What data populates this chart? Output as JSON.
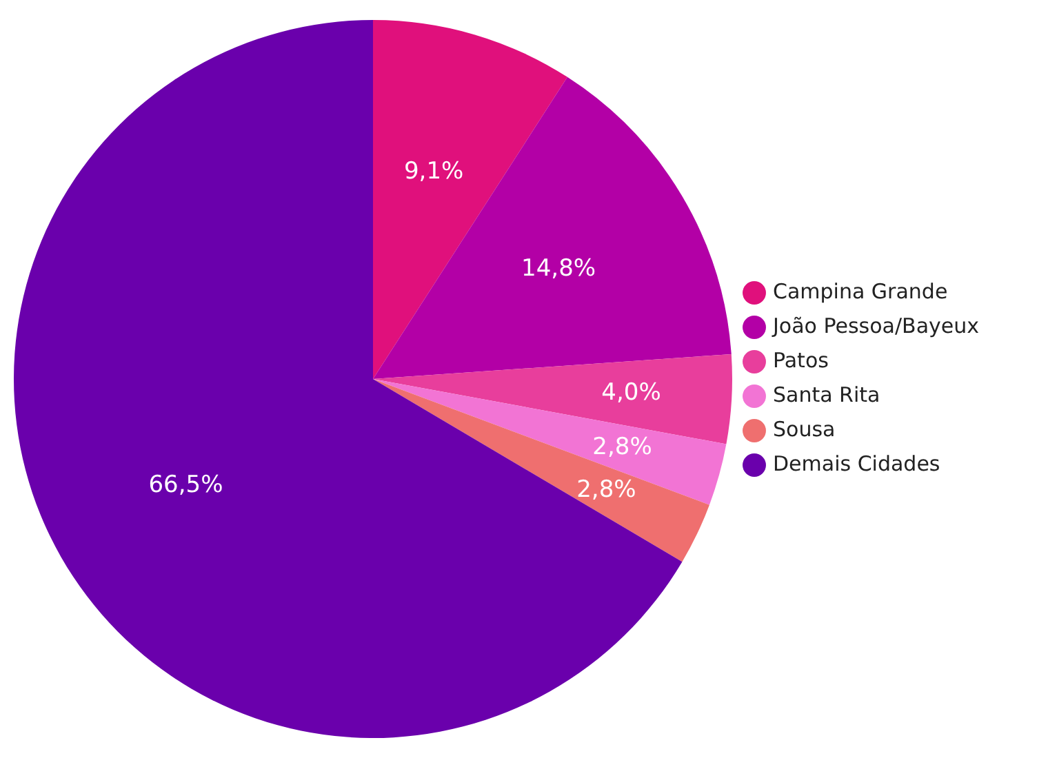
{
  "chart_data": {
    "type": "pie",
    "categories": [
      "Campina Grande",
      "João Pessoa/Bayeux",
      "Patos",
      "Santa Rita",
      "Sousa",
      "Demais Cidades"
    ],
    "values": [
      9.1,
      14.8,
      4.0,
      2.8,
      2.8,
      66.5
    ],
    "colors": [
      "#e0107c",
      "#b300a6",
      "#e83e9c",
      "#f274d4",
      "#ef6f6f",
      "#6a00ac"
    ],
    "value_labels": [
      "9,1%",
      "14,8%",
      "4,0%",
      "2,8%",
      "2,8%",
      "66,5%"
    ],
    "legend": "right"
  }
}
